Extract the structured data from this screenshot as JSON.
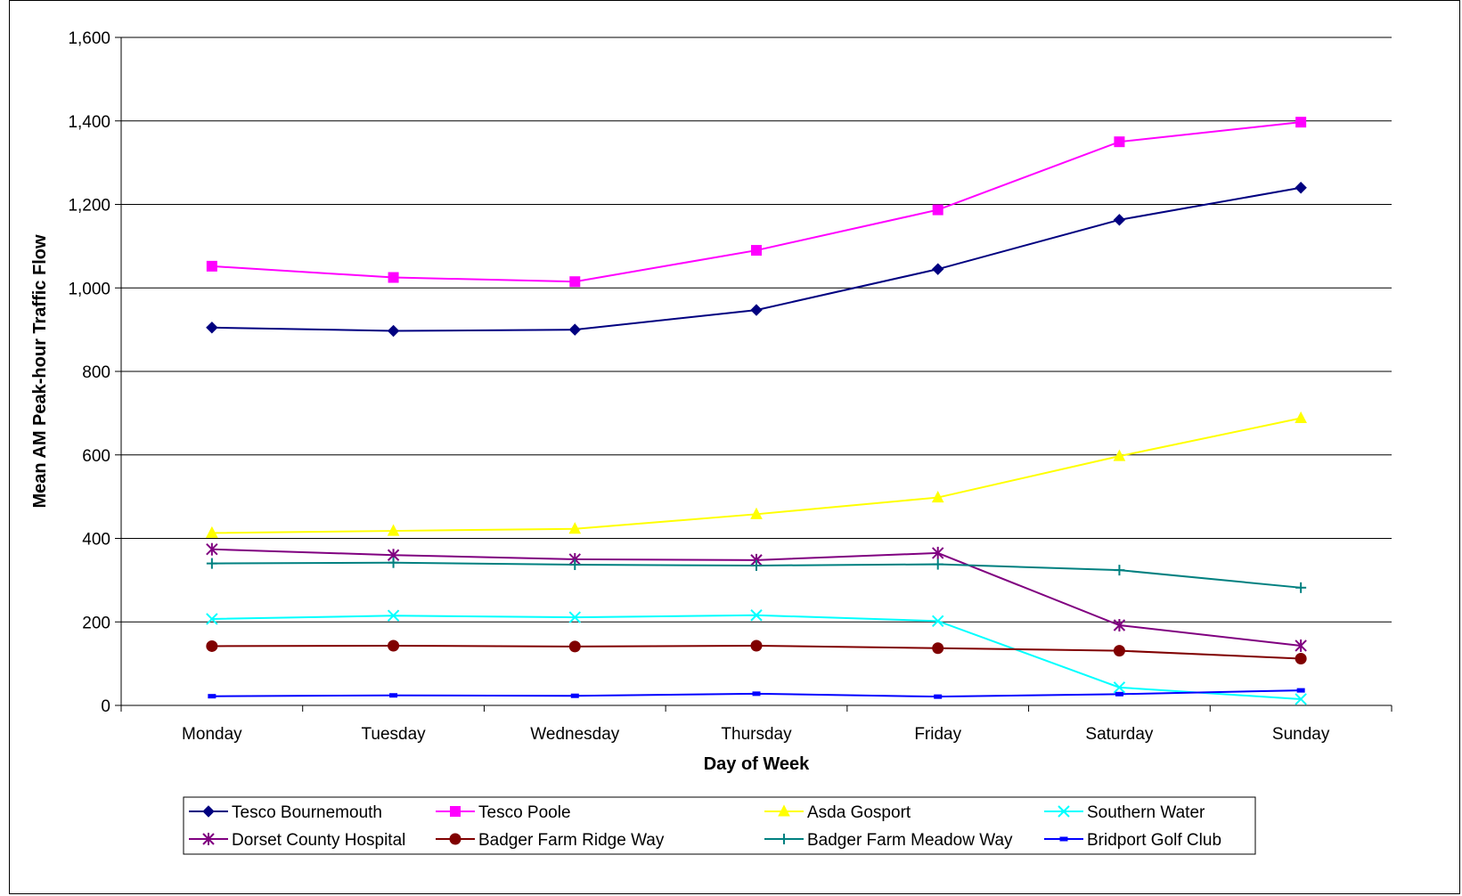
{
  "chart_data": {
    "type": "line",
    "title": "",
    "xlabel": "Day of Week",
    "ylabel": "Mean AM Peak-hour Traffic Flow",
    "categories": [
      "Monday",
      "Tuesday",
      "Wednesday",
      "Thursday",
      "Friday",
      "Saturday",
      "Sunday"
    ],
    "ylim": [
      0,
      1600
    ],
    "yticks": [
      0,
      200,
      400,
      600,
      800,
      1000,
      1200,
      1400,
      1600
    ],
    "ytick_labels": [
      "0",
      "200",
      "400",
      "600",
      "800",
      "1,000",
      "1,200",
      "1,400",
      "1,600"
    ],
    "grid": "horizontal",
    "legend_position": "bottom",
    "series": [
      {
        "name": "Tesco Bournemouth",
        "color": "#000080",
        "marker": "diamond",
        "values": [
          905,
          897,
          900,
          947,
          1045,
          1163,
          1240
        ]
      },
      {
        "name": "Tesco Poole",
        "color": "#FF00FF",
        "marker": "square",
        "values": [
          1052,
          1025,
          1015,
          1090,
          1187,
          1350,
          1397
        ]
      },
      {
        "name": "Asda Gosport",
        "color": "#FFFF00",
        "marker": "triangle",
        "values": [
          413,
          418,
          423,
          458,
          498,
          597,
          688
        ]
      },
      {
        "name": "Southern Water",
        "color": "#00FFFF",
        "marker": "x",
        "values": [
          207,
          215,
          211,
          216,
          202,
          43,
          15
        ]
      },
      {
        "name": "Dorset County Hospital",
        "color": "#800080",
        "marker": "star",
        "values": [
          374,
          360,
          350,
          348,
          365,
          192,
          143
        ]
      },
      {
        "name": "Badger Farm Ridge Way",
        "color": "#800000",
        "marker": "circle",
        "values": [
          142,
          143,
          141,
          143,
          137,
          131,
          112
        ]
      },
      {
        "name": "Badger Farm Meadow Way",
        "color": "#008080",
        "marker": "plus",
        "values": [
          340,
          342,
          337,
          335,
          338,
          324,
          282
        ]
      },
      {
        "name": "Bridport Golf Club",
        "color": "#0000FF",
        "marker": "dash",
        "values": [
          22,
          24,
          23,
          28,
          21,
          27,
          36
        ]
      }
    ]
  }
}
